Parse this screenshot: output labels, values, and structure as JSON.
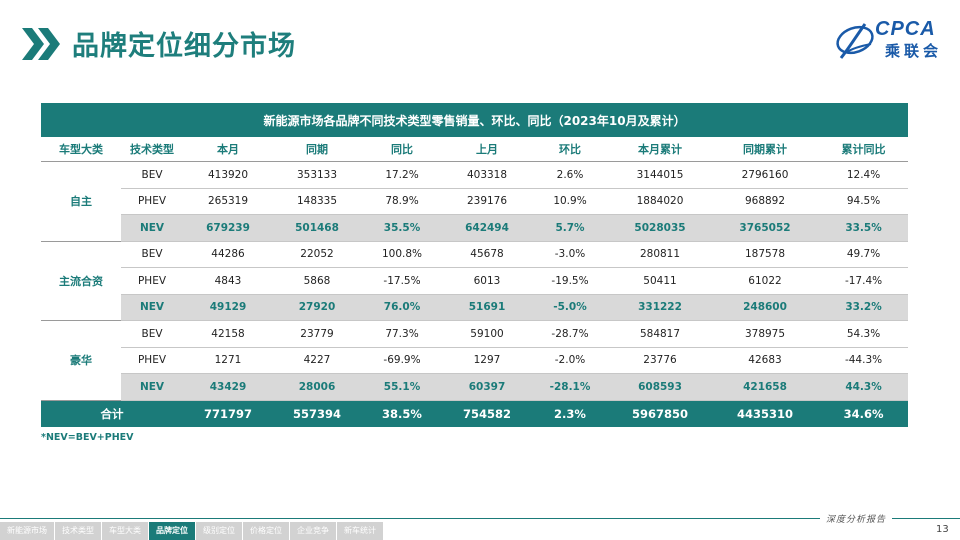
{
  "page": {
    "title": "品牌定位细分市场",
    "page_number": "13",
    "footnote": "*NEV=BEV+PHEV",
    "slogan": "深度分析报告"
  },
  "logo": {
    "latin": "CPCA",
    "chinese": "乘联会"
  },
  "colors": {
    "accent": "#1b7b79",
    "logo_blue": "#1a5aa8",
    "nev_row_bg": "#d9d9d9"
  },
  "table": {
    "caption": "新能源市场各品牌不同技术类型零售销量、环比、同比（2023年10月及累计）",
    "columns": [
      "车型大类",
      "技术类型",
      "本月",
      "同期",
      "同比",
      "上月",
      "环比",
      "本月累计",
      "同期累计",
      "累计同比"
    ],
    "groups": [
      {
        "name": "自主",
        "rows": [
          [
            "BEV",
            "413920",
            "353133",
            "17.2%",
            "403318",
            "2.6%",
            "3144015",
            "2796160",
            "12.4%"
          ],
          [
            "PHEV",
            "265319",
            "148335",
            "78.9%",
            "239176",
            "10.9%",
            "1884020",
            "968892",
            "94.5%"
          ],
          [
            "NEV",
            "679239",
            "501468",
            "35.5%",
            "642494",
            "5.7%",
            "5028035",
            "3765052",
            "33.5%"
          ]
        ]
      },
      {
        "name": "主流合资",
        "rows": [
          [
            "BEV",
            "44286",
            "22052",
            "100.8%",
            "45678",
            "-3.0%",
            "280811",
            "187578",
            "49.7%"
          ],
          [
            "PHEV",
            "4843",
            "5868",
            "-17.5%",
            "6013",
            "-19.5%",
            "50411",
            "61022",
            "-17.4%"
          ],
          [
            "NEV",
            "49129",
            "27920",
            "76.0%",
            "51691",
            "-5.0%",
            "331222",
            "248600",
            "33.2%"
          ]
        ]
      },
      {
        "name": "豪华",
        "rows": [
          [
            "BEV",
            "42158",
            "23779",
            "77.3%",
            "59100",
            "-28.7%",
            "584817",
            "378975",
            "54.3%"
          ],
          [
            "PHEV",
            "1271",
            "4227",
            "-69.9%",
            "1297",
            "-2.0%",
            "23776",
            "42683",
            "-44.3%"
          ],
          [
            "NEV",
            "43429",
            "28006",
            "55.1%",
            "60397",
            "-28.1%",
            "608593",
            "421658",
            "44.3%"
          ]
        ]
      }
    ],
    "total": [
      "合计",
      "771797",
      "557394",
      "38.5%",
      "754582",
      "2.3%",
      "5967850",
      "4435310",
      "34.6%"
    ]
  },
  "footer_nav": {
    "items": [
      "新能源市场",
      "技术类型",
      "车型大类",
      "品牌定位",
      "级别定位",
      "价格定位",
      "企业竞争",
      "新车统计"
    ],
    "active": "品牌定位"
  }
}
